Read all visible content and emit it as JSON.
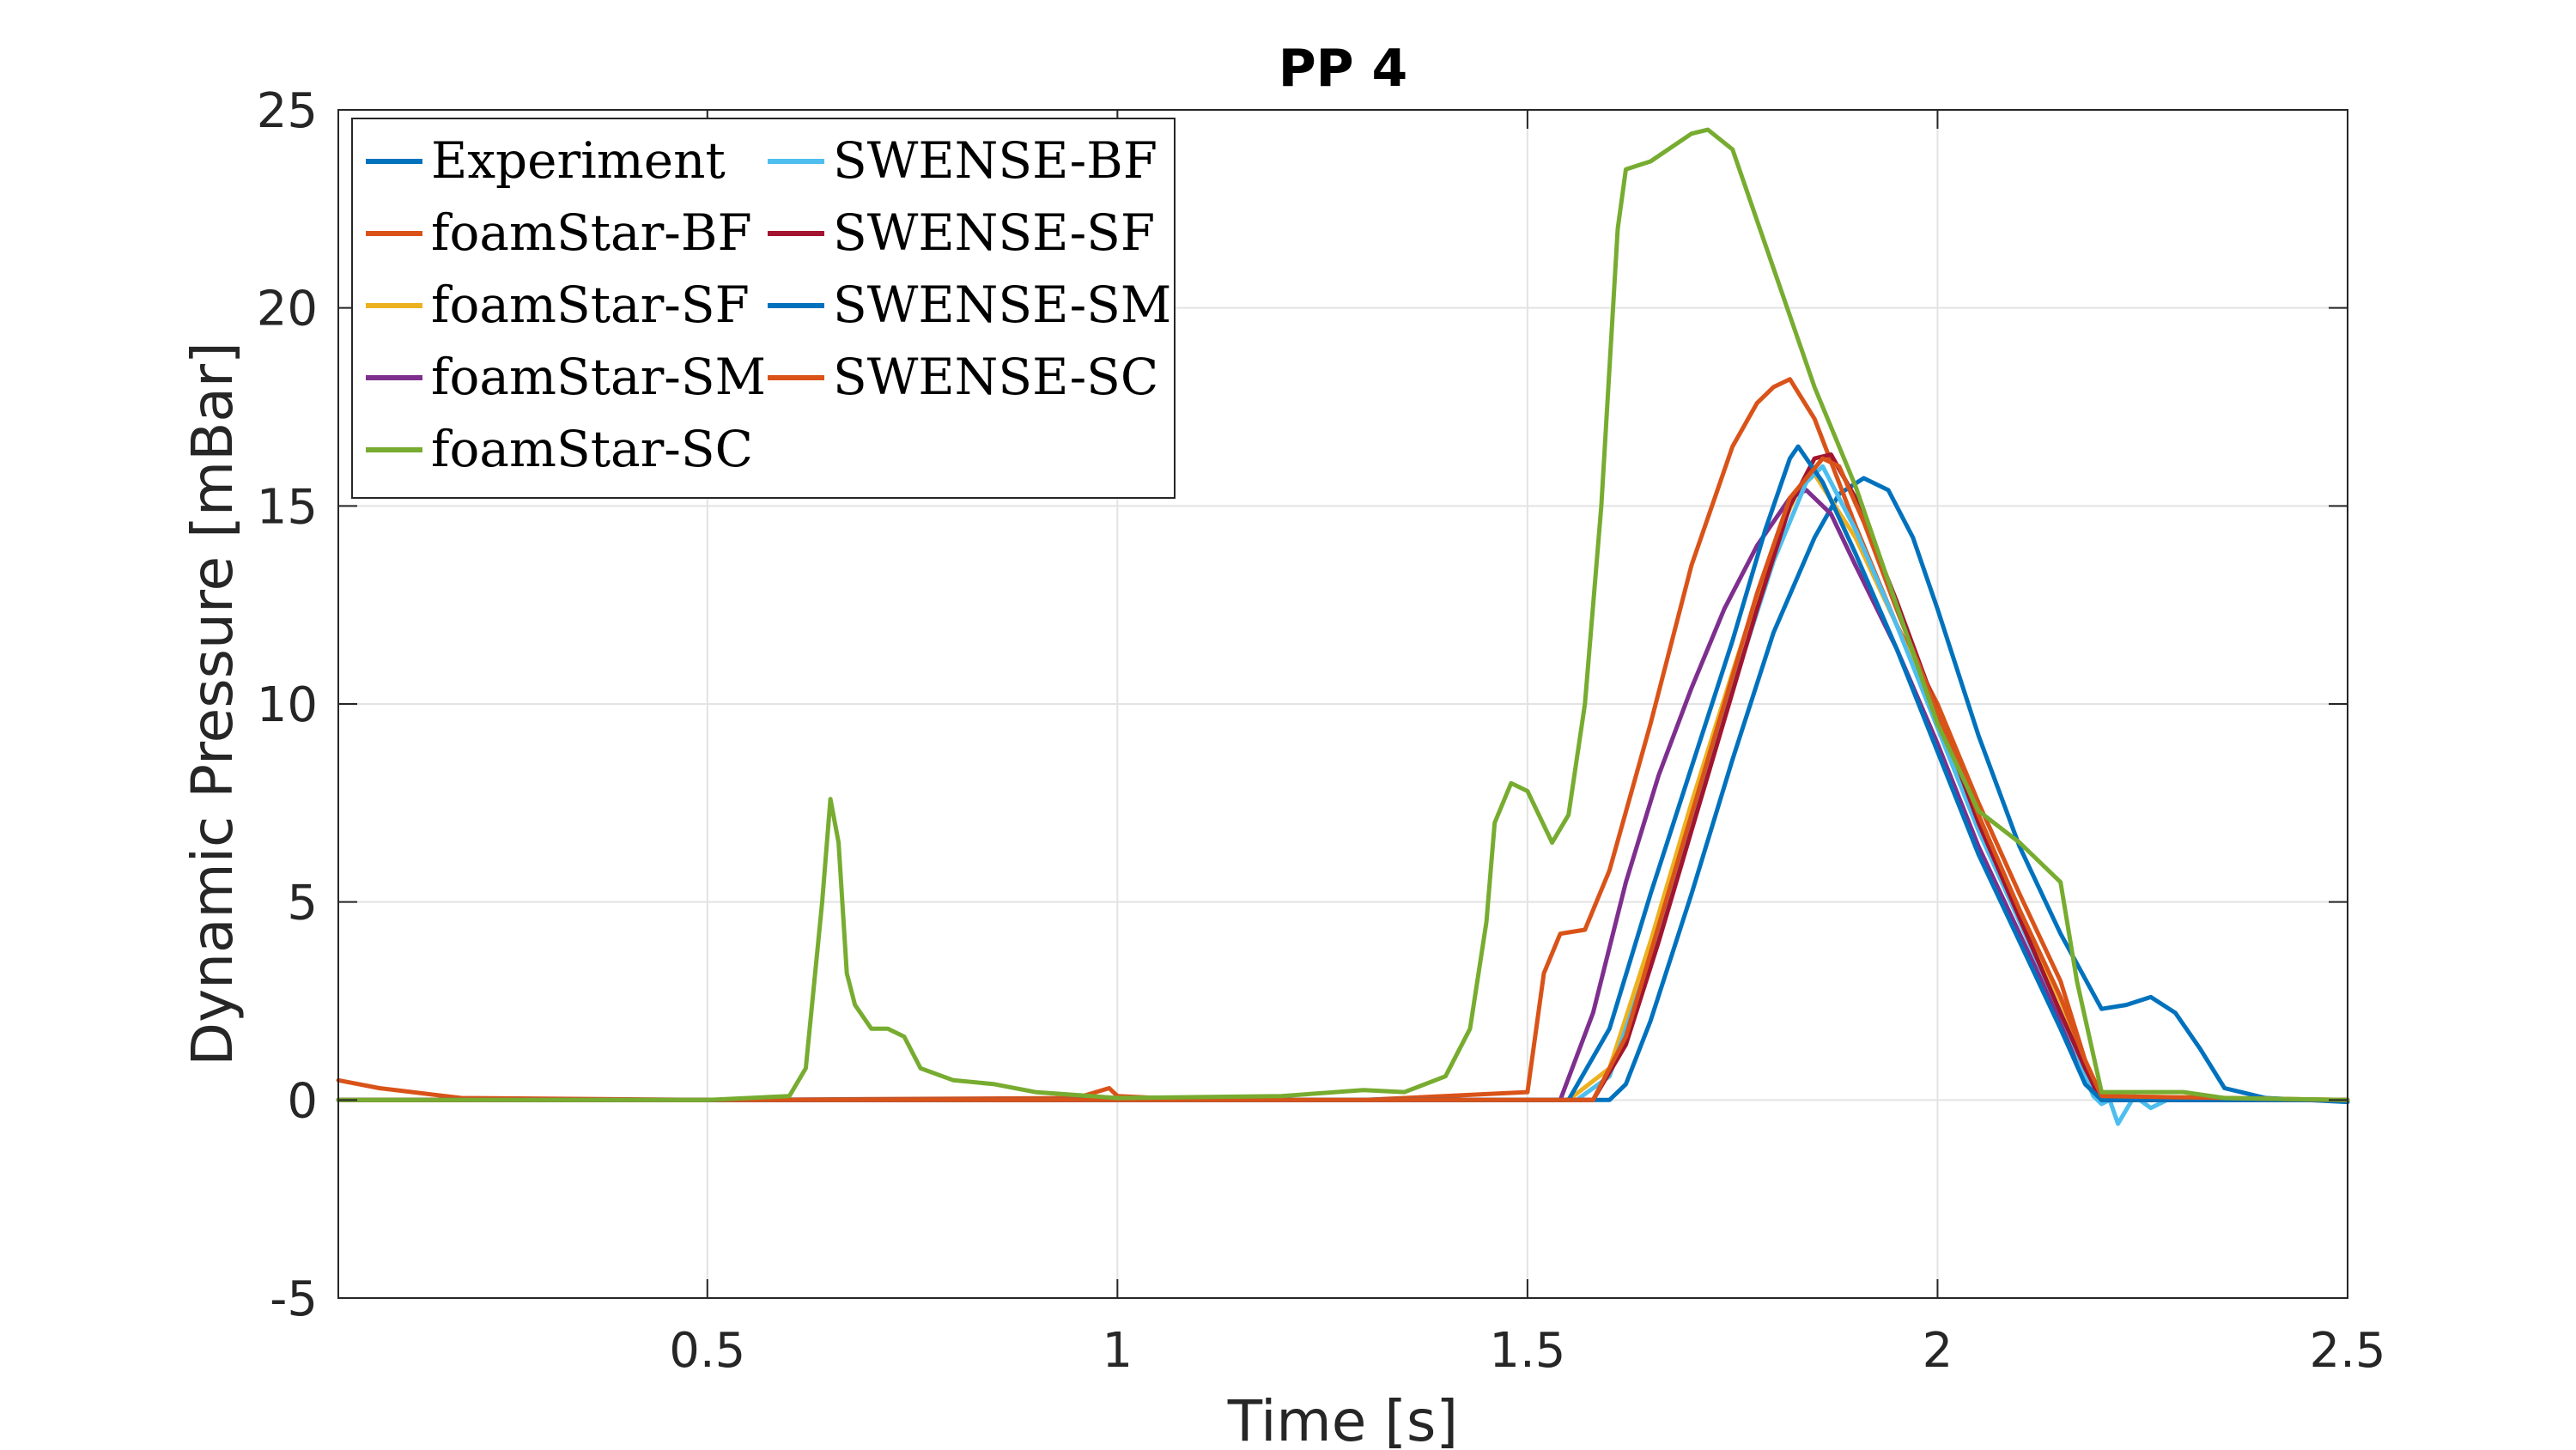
{
  "chart_data": {
    "type": "line",
    "title": "PP 4",
    "xlabel": "Time [s]",
    "ylabel": "Dynamic Pressure [mBar]",
    "xlim": [
      0.05,
      2.5
    ],
    "ylim": [
      -5,
      25
    ],
    "xticks": [
      0.5,
      1,
      1.5,
      2,
      2.5
    ],
    "xtick_labels": [
      "0.5",
      "1",
      "1.5",
      "2",
      "2.5"
    ],
    "yticks": [
      -5,
      0,
      5,
      10,
      15,
      20,
      25
    ],
    "ytick_labels": [
      "-5",
      "0",
      "5",
      "10",
      "15",
      "20",
      "25"
    ],
    "grid": true,
    "legend_position": "top-left",
    "legend_columns": 2,
    "series": [
      {
        "name": "Experiment",
        "color": "#0072BD",
        "x": [
          0.05,
          0.5,
          1.0,
          1.5,
          1.6,
          1.62,
          1.65,
          1.7,
          1.75,
          1.8,
          1.85,
          1.88,
          1.91,
          1.94,
          1.97,
          2.0,
          2.05,
          2.1,
          2.15,
          2.2,
          2.23,
          2.26,
          2.29,
          2.32,
          2.35,
          2.4,
          2.45,
          2.5
        ],
        "y": [
          0,
          0,
          0,
          0,
          0,
          0.4,
          2.0,
          5.2,
          8.6,
          11.8,
          14.2,
          15.3,
          15.7,
          15.4,
          14.2,
          12.4,
          9.2,
          6.4,
          4.2,
          2.3,
          2.4,
          2.6,
          2.2,
          1.3,
          0.3,
          0.05,
          0,
          -0.05
        ]
      },
      {
        "name": "foamStar-BF",
        "color": "#D95319",
        "x": [
          0.05,
          0.1,
          0.2,
          0.5,
          0.95,
          0.99,
          1.0,
          1.1,
          1.3,
          1.5,
          1.52,
          1.54,
          1.57,
          1.6,
          1.65,
          1.7,
          1.75,
          1.78,
          1.8,
          1.82,
          1.85,
          1.9,
          1.95,
          2.0,
          2.05,
          2.1,
          2.15,
          2.18,
          2.2,
          2.25,
          2.5
        ],
        "y": [
          0.5,
          0.3,
          0.05,
          0,
          0.05,
          0.3,
          0.1,
          0,
          0,
          0.2,
          3.2,
          4.2,
          4.3,
          5.8,
          9.5,
          13.5,
          16.5,
          17.6,
          18.0,
          18.2,
          17.2,
          14.5,
          12.0,
          10.0,
          7.5,
          5.2,
          3.0,
          1.0,
          0.1,
          0,
          0
        ]
      },
      {
        "name": "foamStar-SF",
        "color": "#EDB120",
        "x": [
          0.05,
          1.0,
          1.55,
          1.6,
          1.65,
          1.7,
          1.75,
          1.8,
          1.83,
          1.85,
          1.9,
          1.95,
          2.0,
          2.05,
          2.1,
          2.15,
          2.18,
          2.2,
          2.5
        ],
        "y": [
          0,
          0,
          0,
          0.8,
          4.0,
          7.5,
          10.8,
          14.0,
          15.4,
          15.8,
          14.2,
          12.0,
          9.6,
          7.0,
          4.8,
          2.5,
          1.0,
          0.1,
          0
        ]
      },
      {
        "name": "foamStar-SM",
        "color": "#7E2F8E",
        "x": [
          0.05,
          1.0,
          1.54,
          1.58,
          1.62,
          1.66,
          1.7,
          1.74,
          1.78,
          1.82,
          1.84,
          1.87,
          1.9,
          1.95,
          2.0,
          2.05,
          2.1,
          2.15,
          2.18,
          2.2,
          2.5
        ],
        "y": [
          0,
          0,
          0,
          2.2,
          5.5,
          8.2,
          10.4,
          12.4,
          14.0,
          15.2,
          15.4,
          14.8,
          13.5,
          11.4,
          9.0,
          6.4,
          4.2,
          2.0,
          0.6,
          0,
          0
        ]
      },
      {
        "name": "foamStar-SC",
        "color": "#77AC30",
        "x": [
          0.05,
          0.5,
          0.6,
          0.62,
          0.64,
          0.65,
          0.66,
          0.67,
          0.68,
          0.7,
          0.72,
          0.74,
          0.76,
          0.8,
          0.85,
          0.9,
          1.0,
          1.2,
          1.3,
          1.35,
          1.4,
          1.43,
          1.45,
          1.46,
          1.48,
          1.5,
          1.53,
          1.55,
          1.57,
          1.59,
          1.61,
          1.62,
          1.65,
          1.7,
          1.72,
          1.75,
          1.8,
          1.85,
          1.9,
          1.95,
          2.0,
          2.05,
          2.1,
          2.15,
          2.17,
          2.2,
          2.3,
          2.35,
          2.5
        ],
        "y": [
          0,
          0,
          0.1,
          0.8,
          5.0,
          7.6,
          6.5,
          3.2,
          2.4,
          1.8,
          1.8,
          1.6,
          0.8,
          0.5,
          0.4,
          0.2,
          0.05,
          0.1,
          0.25,
          0.2,
          0.6,
          1.8,
          4.5,
          7.0,
          8.0,
          7.8,
          6.5,
          7.2,
          10.0,
          15.0,
          22.0,
          23.5,
          23.7,
          24.4,
          24.5,
          24.0,
          21.0,
          18.0,
          15.5,
          12.5,
          9.5,
          7.3,
          6.5,
          5.5,
          3.0,
          0.2,
          0.2,
          0.05,
          0
        ]
      },
      {
        "name": "SWENSE-BF",
        "color": "#4DBEEE",
        "x": [
          0.05,
          1.0,
          1.56,
          1.6,
          1.65,
          1.7,
          1.75,
          1.8,
          1.84,
          1.86,
          1.9,
          1.95,
          2.0,
          2.05,
          2.1,
          2.15,
          2.17,
          2.18,
          2.19,
          2.2,
          2.21,
          2.22,
          2.24,
          2.26,
          2.28,
          2.5
        ],
        "y": [
          0,
          0,
          0,
          0.6,
          3.6,
          7.0,
          10.4,
          13.6,
          15.6,
          16.0,
          14.4,
          12.0,
          9.4,
          6.8,
          4.5,
          2.2,
          1.2,
          0.6,
          0.1,
          -0.1,
          0.0,
          -0.6,
          0.1,
          -0.2,
          0.0,
          0
        ]
      },
      {
        "name": "SWENSE-SF",
        "color": "#A2142F",
        "x": [
          0.05,
          1.0,
          1.58,
          1.62,
          1.66,
          1.7,
          1.74,
          1.78,
          1.82,
          1.85,
          1.87,
          1.9,
          1.95,
          2.0,
          2.05,
          2.1,
          2.15,
          2.18,
          2.2,
          2.5
        ],
        "y": [
          0,
          0,
          0,
          1.4,
          4.0,
          6.8,
          9.6,
          12.4,
          15.0,
          16.2,
          16.3,
          15.2,
          12.6,
          9.8,
          7.0,
          4.6,
          2.2,
          0.8,
          0,
          0
        ]
      },
      {
        "name": "SWENSE-SM",
        "color": "#0072BD",
        "x": [
          0.05,
          1.0,
          1.55,
          1.6,
          1.65,
          1.7,
          1.75,
          1.79,
          1.82,
          1.83,
          1.86,
          1.9,
          1.95,
          2.0,
          2.05,
          2.1,
          2.15,
          2.18,
          2.2,
          2.5
        ],
        "y": [
          0,
          0,
          0,
          1.8,
          5.2,
          8.4,
          11.6,
          14.4,
          16.2,
          16.5,
          15.6,
          13.8,
          11.4,
          8.8,
          6.2,
          4.0,
          1.8,
          0.4,
          0,
          0
        ]
      },
      {
        "name": "SWENSE-SC",
        "color": "#D95319",
        "x": [
          0.05,
          1.0,
          1.58,
          1.62,
          1.66,
          1.7,
          1.74,
          1.78,
          1.82,
          1.86,
          1.88,
          1.91,
          1.95,
          2.0,
          2.05,
          2.1,
          2.15,
          2.18,
          2.2,
          2.5
        ],
        "y": [
          0,
          0,
          0,
          1.6,
          4.4,
          7.2,
          10.0,
          12.8,
          15.2,
          16.2,
          16.0,
          14.6,
          12.4,
          9.8,
          7.2,
          4.8,
          2.6,
          1.0,
          0.1,
          0
        ]
      }
    ]
  }
}
